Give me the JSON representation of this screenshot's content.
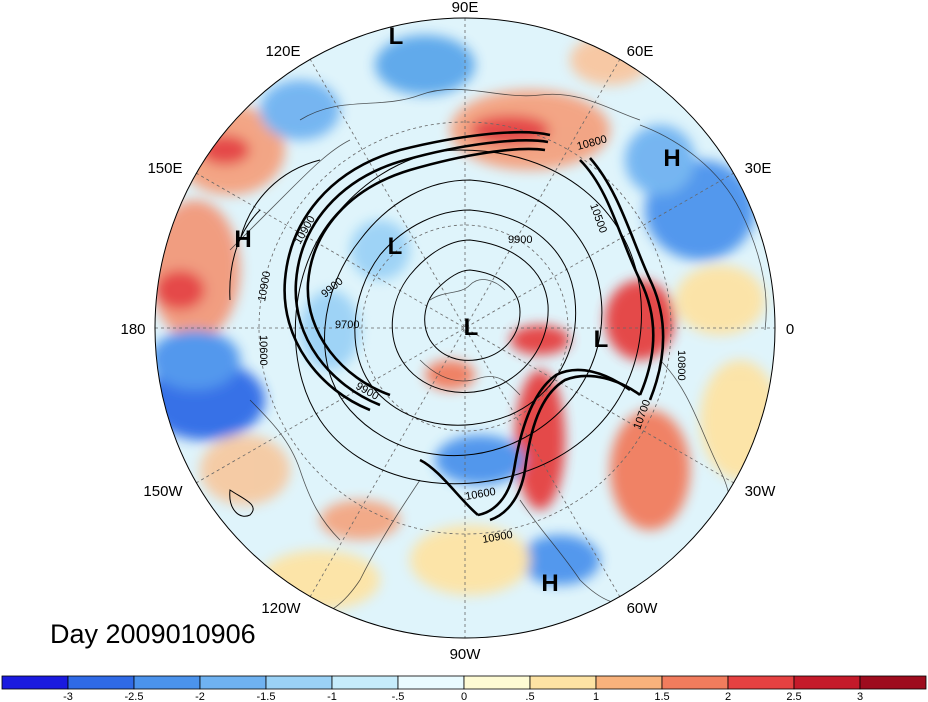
{
  "map": {
    "projection": "north-polar-stereographic",
    "date_label": "Day 2009010906",
    "longitude_labels": [
      {
        "name": "lon-label-90e",
        "text": "90E"
      },
      {
        "name": "lon-label-60e",
        "text": "60E"
      },
      {
        "name": "lon-label-30e",
        "text": "30E"
      },
      {
        "name": "lon-label-0",
        "text": "0"
      },
      {
        "name": "lon-label-30w",
        "text": "30W"
      },
      {
        "name": "lon-label-60w",
        "text": "60W"
      },
      {
        "name": "lon-label-90w",
        "text": "90W"
      },
      {
        "name": "lon-label-120w",
        "text": "120W"
      },
      {
        "name": "lon-label-150w",
        "text": "150W"
      },
      {
        "name": "lon-label-180",
        "text": "180"
      },
      {
        "name": "lon-label-150e",
        "text": "150E"
      },
      {
        "name": "lon-label-120e",
        "text": "120E"
      }
    ],
    "pressure_centers": [
      {
        "name": "low-center-north",
        "text": "L"
      },
      {
        "name": "high-center-east",
        "text": "H"
      },
      {
        "name": "high-center-west",
        "text": "H"
      },
      {
        "name": "low-center-siberia",
        "text": "L"
      },
      {
        "name": "low-center-pole",
        "text": "L"
      },
      {
        "name": "low-center-atlantic",
        "text": "L"
      },
      {
        "name": "high-center-southeast",
        "text": "H"
      }
    ],
    "contour_labels": [
      {
        "name": "contour-label-10800",
        "text": "10800"
      },
      {
        "name": "contour-label-9900-east",
        "text": "9900"
      },
      {
        "name": "contour-label-10500",
        "text": "10500"
      },
      {
        "name": "contour-label-10900-west",
        "text": "10900"
      },
      {
        "name": "contour-label-10600-west",
        "text": "10600"
      },
      {
        "name": "contour-label-9900-west",
        "text": "9900"
      },
      {
        "name": "contour-label-9700",
        "text": "9700"
      },
      {
        "name": "contour-label-9900-sw",
        "text": "9900"
      },
      {
        "name": "contour-label-10900-east",
        "text": "10900"
      },
      {
        "name": "contour-label-10800-east",
        "text": "10800"
      },
      {
        "name": "contour-label-10700",
        "text": "10700"
      },
      {
        "name": "contour-label-10600-south",
        "text": "10600"
      },
      {
        "name": "contour-label-10900-south",
        "text": "10900"
      }
    ],
    "colors": {
      "background": "#ffffff",
      "neutral_fill": "#dff4fb",
      "warm_fill": "#f3b38f",
      "cold_fill": "#5aa6ea"
    }
  },
  "colorbar": {
    "tick_labels": [
      "-3",
      "-2.5",
      "-2",
      "-1.5",
      "-1",
      "-.5",
      "0",
      ".5",
      "1",
      "1.5",
      "2",
      "2.5",
      "3"
    ],
    "colors": [
      "#1a1adf",
      "#2f6ae6",
      "#4b93ec",
      "#6fb2f1",
      "#9bd2f6",
      "#c6ecfb",
      "#e9fbff",
      "#fefbd4",
      "#fde3a4",
      "#f8b27c",
      "#f17c5d",
      "#e54141",
      "#c41a2a",
      "#9e0c1e"
    ]
  }
}
